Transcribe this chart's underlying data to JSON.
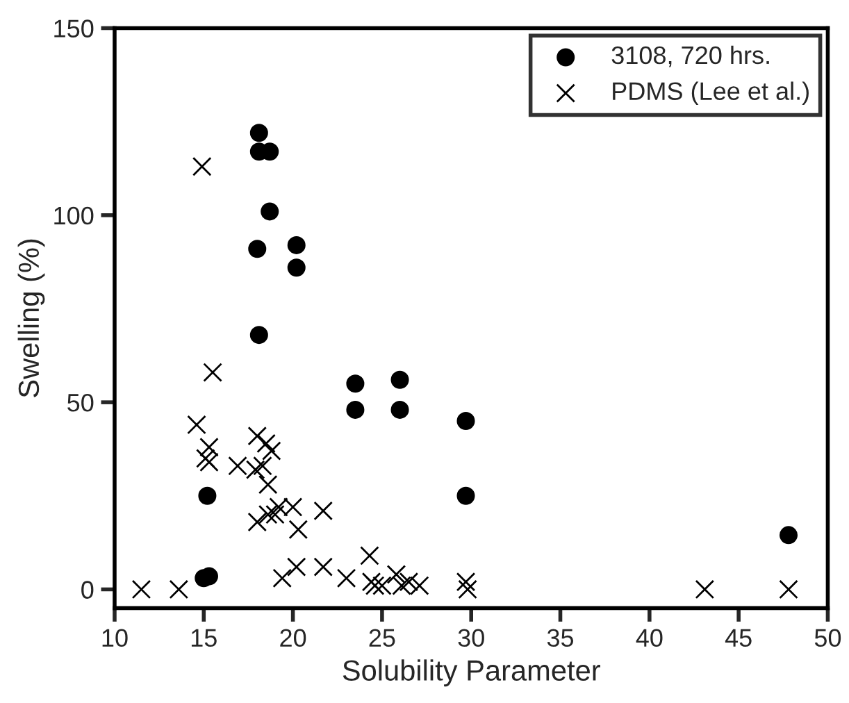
{
  "chart_data": {
    "type": "scatter",
    "xlabel": "Solubility Parameter",
    "ylabel": "Swelling (%)",
    "xlim": [
      10,
      50
    ],
    "xticks": [
      10,
      15,
      20,
      25,
      30,
      35,
      40,
      45,
      50
    ],
    "ylim": [
      -5,
      150
    ],
    "yticks": [
      0,
      50,
      100,
      150
    ],
    "grid": false,
    "legend": "top right",
    "series": [
      {
        "name": "3108, 720 hrs.",
        "color": "#000000",
        "marker": "circle",
        "x": [
          15.0,
          15.3,
          15.2,
          18.1,
          18.1,
          18.7,
          18.0,
          18.7,
          18.1,
          20.2,
          20.2,
          23.5,
          23.5,
          26.0,
          26.0,
          29.7,
          29.7,
          47.8
        ],
        "values": [
          3,
          3.5,
          25,
          122,
          117,
          117,
          91,
          101,
          68,
          92,
          86,
          55,
          48,
          56,
          48,
          45,
          25,
          14.5
        ]
      },
      {
        "name": "PDMS (Lee et al.)",
        "color": "#000000",
        "marker": "cross",
        "x": [
          11.5,
          13.6,
          14.9,
          15.5,
          14.6,
          15.3,
          15.1,
          15.3,
          16.9,
          18.0,
          18.5,
          18.8,
          17.9,
          18.3,
          18.6,
          18.6,
          18.0,
          19.2,
          19.0,
          20.0,
          20.3,
          21.7,
          19.4,
          20.2,
          21.7,
          23.0,
          24.3,
          24.4,
          24.6,
          25.0,
          25.8,
          26.1,
          26.5,
          27.1,
          29.7,
          29.8,
          43.1,
          47.8
        ],
        "values": [
          0,
          0,
          113,
          58,
          44,
          38,
          35,
          34,
          33,
          41,
          39,
          37,
          32,
          33,
          28,
          20,
          18,
          22,
          20,
          22,
          16,
          21,
          3,
          6,
          6,
          3,
          9,
          2,
          1,
          1,
          4,
          1,
          2,
          1,
          2,
          0,
          0,
          0
        ]
      }
    ]
  }
}
